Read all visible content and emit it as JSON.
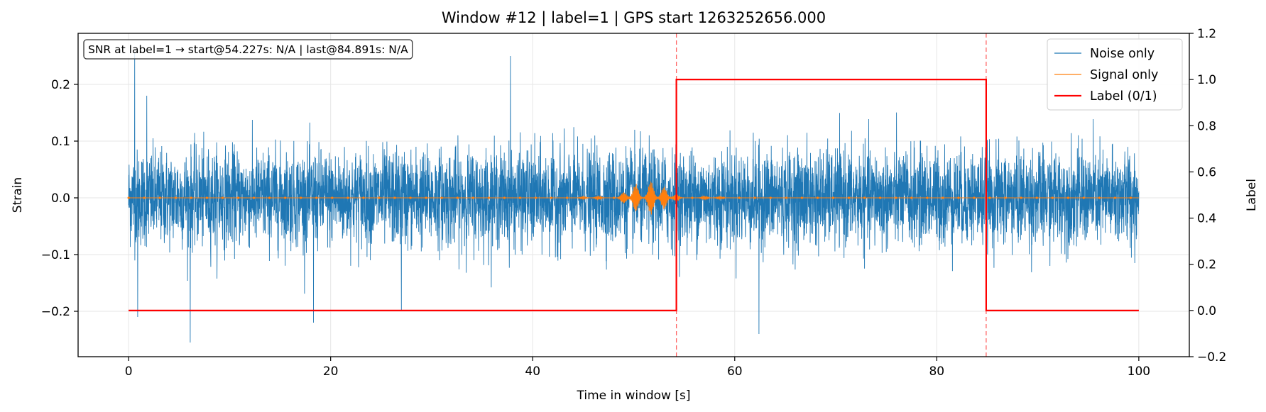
{
  "chart_data": {
    "type": "line",
    "title": "Window #12  |  label=1  |  GPS start 1263252656.000",
    "xlabel": "Time in window [s]",
    "ylabel_left": "Strain",
    "ylabel_right": "Label",
    "xlim": [
      -5,
      105
    ],
    "ylim_left": [
      -0.28,
      0.29
    ],
    "ylim_right": [
      -0.2,
      1.2
    ],
    "x_ticks": [
      0,
      20,
      40,
      60,
      80,
      100
    ],
    "x_tick_labels": [
      "0",
      "20",
      "40",
      "60",
      "80",
      "100"
    ],
    "y_left_ticks": [
      -0.2,
      -0.1,
      0.0,
      0.1,
      0.2
    ],
    "y_left_tick_labels": [
      "−0.2",
      "−0.1",
      "0.0",
      "0.1",
      "0.2"
    ],
    "y_right_ticks": [
      -0.2,
      0.0,
      0.2,
      0.4,
      0.6,
      0.8,
      1.0,
      1.2
    ],
    "y_right_tick_labels": [
      "−0.2",
      "0.0",
      "0.2",
      "0.4",
      "0.6",
      "0.8",
      "1.0",
      "1.2"
    ],
    "grid": true,
    "legend_position": "top-right",
    "annotation": "SNR at label=1 → start@54.227s: N/A | last@84.891s: N/A",
    "vlines": [
      54.227,
      84.891
    ],
    "series": [
      {
        "name": "Noise only",
        "color": "#1f77b4",
        "axis": "left",
        "x_range": [
          0,
          100
        ],
        "typical_amplitude": 0.1,
        "peaks": [
          [
            0.6,
            0.255
          ],
          [
            0.9,
            -0.21
          ],
          [
            6.1,
            -0.255
          ],
          [
            18.3,
            -0.22
          ],
          [
            37.8,
            0.25
          ],
          [
            62.4,
            -0.24
          ],
          [
            1.8,
            0.18
          ],
          [
            27.0,
            -0.2
          ]
        ]
      },
      {
        "name": "Signal only",
        "color": "#ff7f0e",
        "axis": "left",
        "x_range": [
          0,
          100
        ],
        "bursts": [
          [
            45.0,
            0.002
          ],
          [
            46.5,
            0.003
          ],
          [
            49.0,
            0.01
          ],
          [
            50.2,
            0.025
          ],
          [
            51.7,
            0.03
          ],
          [
            53.0,
            0.02
          ],
          [
            54.2,
            0.006
          ],
          [
            57.0,
            0.003
          ],
          [
            58.5,
            0.002
          ]
        ]
      },
      {
        "name": "Label (0/1)",
        "color": "#ff0000",
        "axis": "right",
        "x": [
          0,
          54.227,
          54.227,
          84.891,
          84.891,
          100
        ],
        "y": [
          0,
          0,
          1,
          1,
          0,
          0
        ]
      }
    ]
  }
}
